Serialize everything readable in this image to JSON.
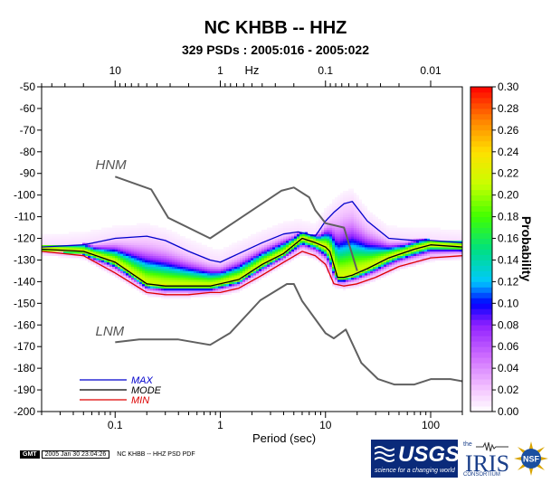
{
  "title": "NC KHBB -- HHZ",
  "subtitle": "329 PSDs : 2005:016 - 2005:022",
  "footer": {
    "gmt": "GMT",
    "timestamp": "2005 Jan 30 23:04:26",
    "caption": "NC KHBB -- HHZ PSD PDF"
  },
  "logos": {
    "usgs": "USGS",
    "usgs_tagline": "science for a changing world",
    "iris": "IRIS",
    "iris_tagline": "CONSORTIUM",
    "iris_prefix": "the",
    "nsf": "NSF"
  },
  "colors": {
    "max": "#0000cc",
    "mode": "#000000",
    "min": "#dd0000",
    "noise_model": "#606060"
  },
  "chart_data": {
    "type": "heatmap",
    "xlabel": "Period (sec)",
    "ylabel": "",
    "x_scale": "log",
    "xlim": [
      0.02,
      200
    ],
    "ylim": [
      -200,
      -50
    ],
    "x_ticks": [
      0.1,
      1,
      10,
      100
    ],
    "x_tick_labels": [
      "0.1",
      "1",
      "10",
      "100"
    ],
    "top_axis": {
      "label": "Hz",
      "label_at_period": 2,
      "ticks_hz": [
        10,
        1,
        0.1,
        0.01
      ],
      "tick_labels": [
        "10",
        "1",
        "0.1",
        "0.01"
      ]
    },
    "y_ticks": [
      -50,
      -60,
      -70,
      -80,
      -90,
      -100,
      -110,
      -120,
      -130,
      -140,
      -150,
      -160,
      -170,
      -180,
      -190,
      -200
    ],
    "y_tick_labels": [
      "-50",
      "-60",
      "-70",
      "-80",
      "-90",
      "-100",
      "-110",
      "-120",
      "-130",
      "-140",
      "-150",
      "-160",
      "-170",
      "-180",
      "-190",
      "-200"
    ],
    "colorbar": {
      "label": "Probability",
      "range": [
        0,
        0.3
      ],
      "ticks": [
        "0.00",
        "0.02",
        "0.04",
        "0.06",
        "0.08",
        "0.10",
        "0.12",
        "0.14",
        "0.16",
        "0.18",
        "0.20",
        "0.22",
        "0.24",
        "0.26",
        "0.28",
        "0.30"
      ]
    },
    "legend": {
      "placement": "bottom-left",
      "entries": [
        {
          "key": "max",
          "label": "MAX"
        },
        {
          "key": "mode",
          "label": "MODE"
        },
        {
          "key": "min",
          "label": "MIN"
        }
      ]
    },
    "annotations": [
      {
        "text": "HNM",
        "period": 0.065,
        "db": -88
      },
      {
        "text": "LNM",
        "period": 0.065,
        "db": -165
      }
    ],
    "series": [
      {
        "key": "max",
        "name": "MAX",
        "points": [
          [
            0.02,
            -124
          ],
          [
            0.05,
            -123
          ],
          [
            0.1,
            -120
          ],
          [
            0.2,
            -119
          ],
          [
            0.3,
            -121
          ],
          [
            0.5,
            -126
          ],
          [
            0.8,
            -130
          ],
          [
            1.0,
            -131
          ],
          [
            1.5,
            -127
          ],
          [
            2.5,
            -122
          ],
          [
            4,
            -118
          ],
          [
            5.5,
            -117
          ],
          [
            8,
            -119
          ],
          [
            10,
            -112
          ],
          [
            12,
            -108
          ],
          [
            15,
            -104
          ],
          [
            18,
            -103
          ],
          [
            25,
            -112
          ],
          [
            40,
            -120
          ],
          [
            70,
            -121
          ],
          [
            100,
            -121
          ],
          [
            200,
            -122
          ]
        ]
      },
      {
        "key": "mode",
        "name": "MODE",
        "points": [
          [
            0.02,
            -125
          ],
          [
            0.05,
            -126
          ],
          [
            0.1,
            -131
          ],
          [
            0.2,
            -141
          ],
          [
            0.3,
            -142
          ],
          [
            0.5,
            -142
          ],
          [
            0.8,
            -142
          ],
          [
            1.0,
            -141
          ],
          [
            1.5,
            -139
          ],
          [
            2.5,
            -132
          ],
          [
            4,
            -127
          ],
          [
            6,
            -120
          ],
          [
            8,
            -122
          ],
          [
            10,
            -124
          ],
          [
            11,
            -126
          ],
          [
            13,
            -138
          ],
          [
            15,
            -138
          ],
          [
            18,
            -137
          ],
          [
            25,
            -134
          ],
          [
            40,
            -129
          ],
          [
            70,
            -125
          ],
          [
            100,
            -123
          ],
          [
            200,
            -124
          ]
        ]
      },
      {
        "key": "min",
        "name": "MIN",
        "points": [
          [
            0.02,
            -126
          ],
          [
            0.05,
            -128
          ],
          [
            0.1,
            -136
          ],
          [
            0.2,
            -145
          ],
          [
            0.3,
            -146
          ],
          [
            0.5,
            -146
          ],
          [
            0.8,
            -145
          ],
          [
            1.0,
            -145
          ],
          [
            1.5,
            -143
          ],
          [
            2.5,
            -137
          ],
          [
            4,
            -131
          ],
          [
            6,
            -126
          ],
          [
            8,
            -128
          ],
          [
            10,
            -132
          ],
          [
            12,
            -141
          ],
          [
            15,
            -142
          ],
          [
            20,
            -141
          ],
          [
            30,
            -138
          ],
          [
            50,
            -133
          ],
          [
            100,
            -129
          ],
          [
            200,
            -128
          ]
        ]
      },
      {
        "key": "hnm",
        "name": "HNM",
        "points": [
          [
            0.1,
            -91.5
          ],
          [
            0.22,
            -97.4
          ],
          [
            0.32,
            -110.5
          ],
          [
            0.8,
            -120
          ],
          [
            3.8,
            -98
          ],
          [
            5,
            -96.5
          ],
          [
            7,
            -101
          ],
          [
            8,
            -107
          ],
          [
            10,
            -113
          ],
          [
            15,
            -115
          ],
          [
            20,
            -135
          ]
        ]
      },
      {
        "key": "lnm",
        "name": "LNM",
        "points": [
          [
            0.1,
            -168
          ],
          [
            0.17,
            -166.7
          ],
          [
            0.4,
            -166.7
          ],
          [
            0.8,
            -169.2
          ],
          [
            1.24,
            -163.7
          ],
          [
            2.4,
            -148.6
          ],
          [
            4.3,
            -141.1
          ],
          [
            5,
            -141.1
          ],
          [
            6,
            -149
          ],
          [
            10,
            -163.8
          ],
          [
            12,
            -166.2
          ],
          [
            15.6,
            -162.1
          ],
          [
            21.9,
            -177.5
          ],
          [
            31.6,
            -185
          ],
          [
            45,
            -187.5
          ],
          [
            70,
            -187.5
          ],
          [
            101,
            -185
          ],
          [
            154,
            -185
          ],
          [
            200,
            -186
          ]
        ]
      }
    ]
  }
}
